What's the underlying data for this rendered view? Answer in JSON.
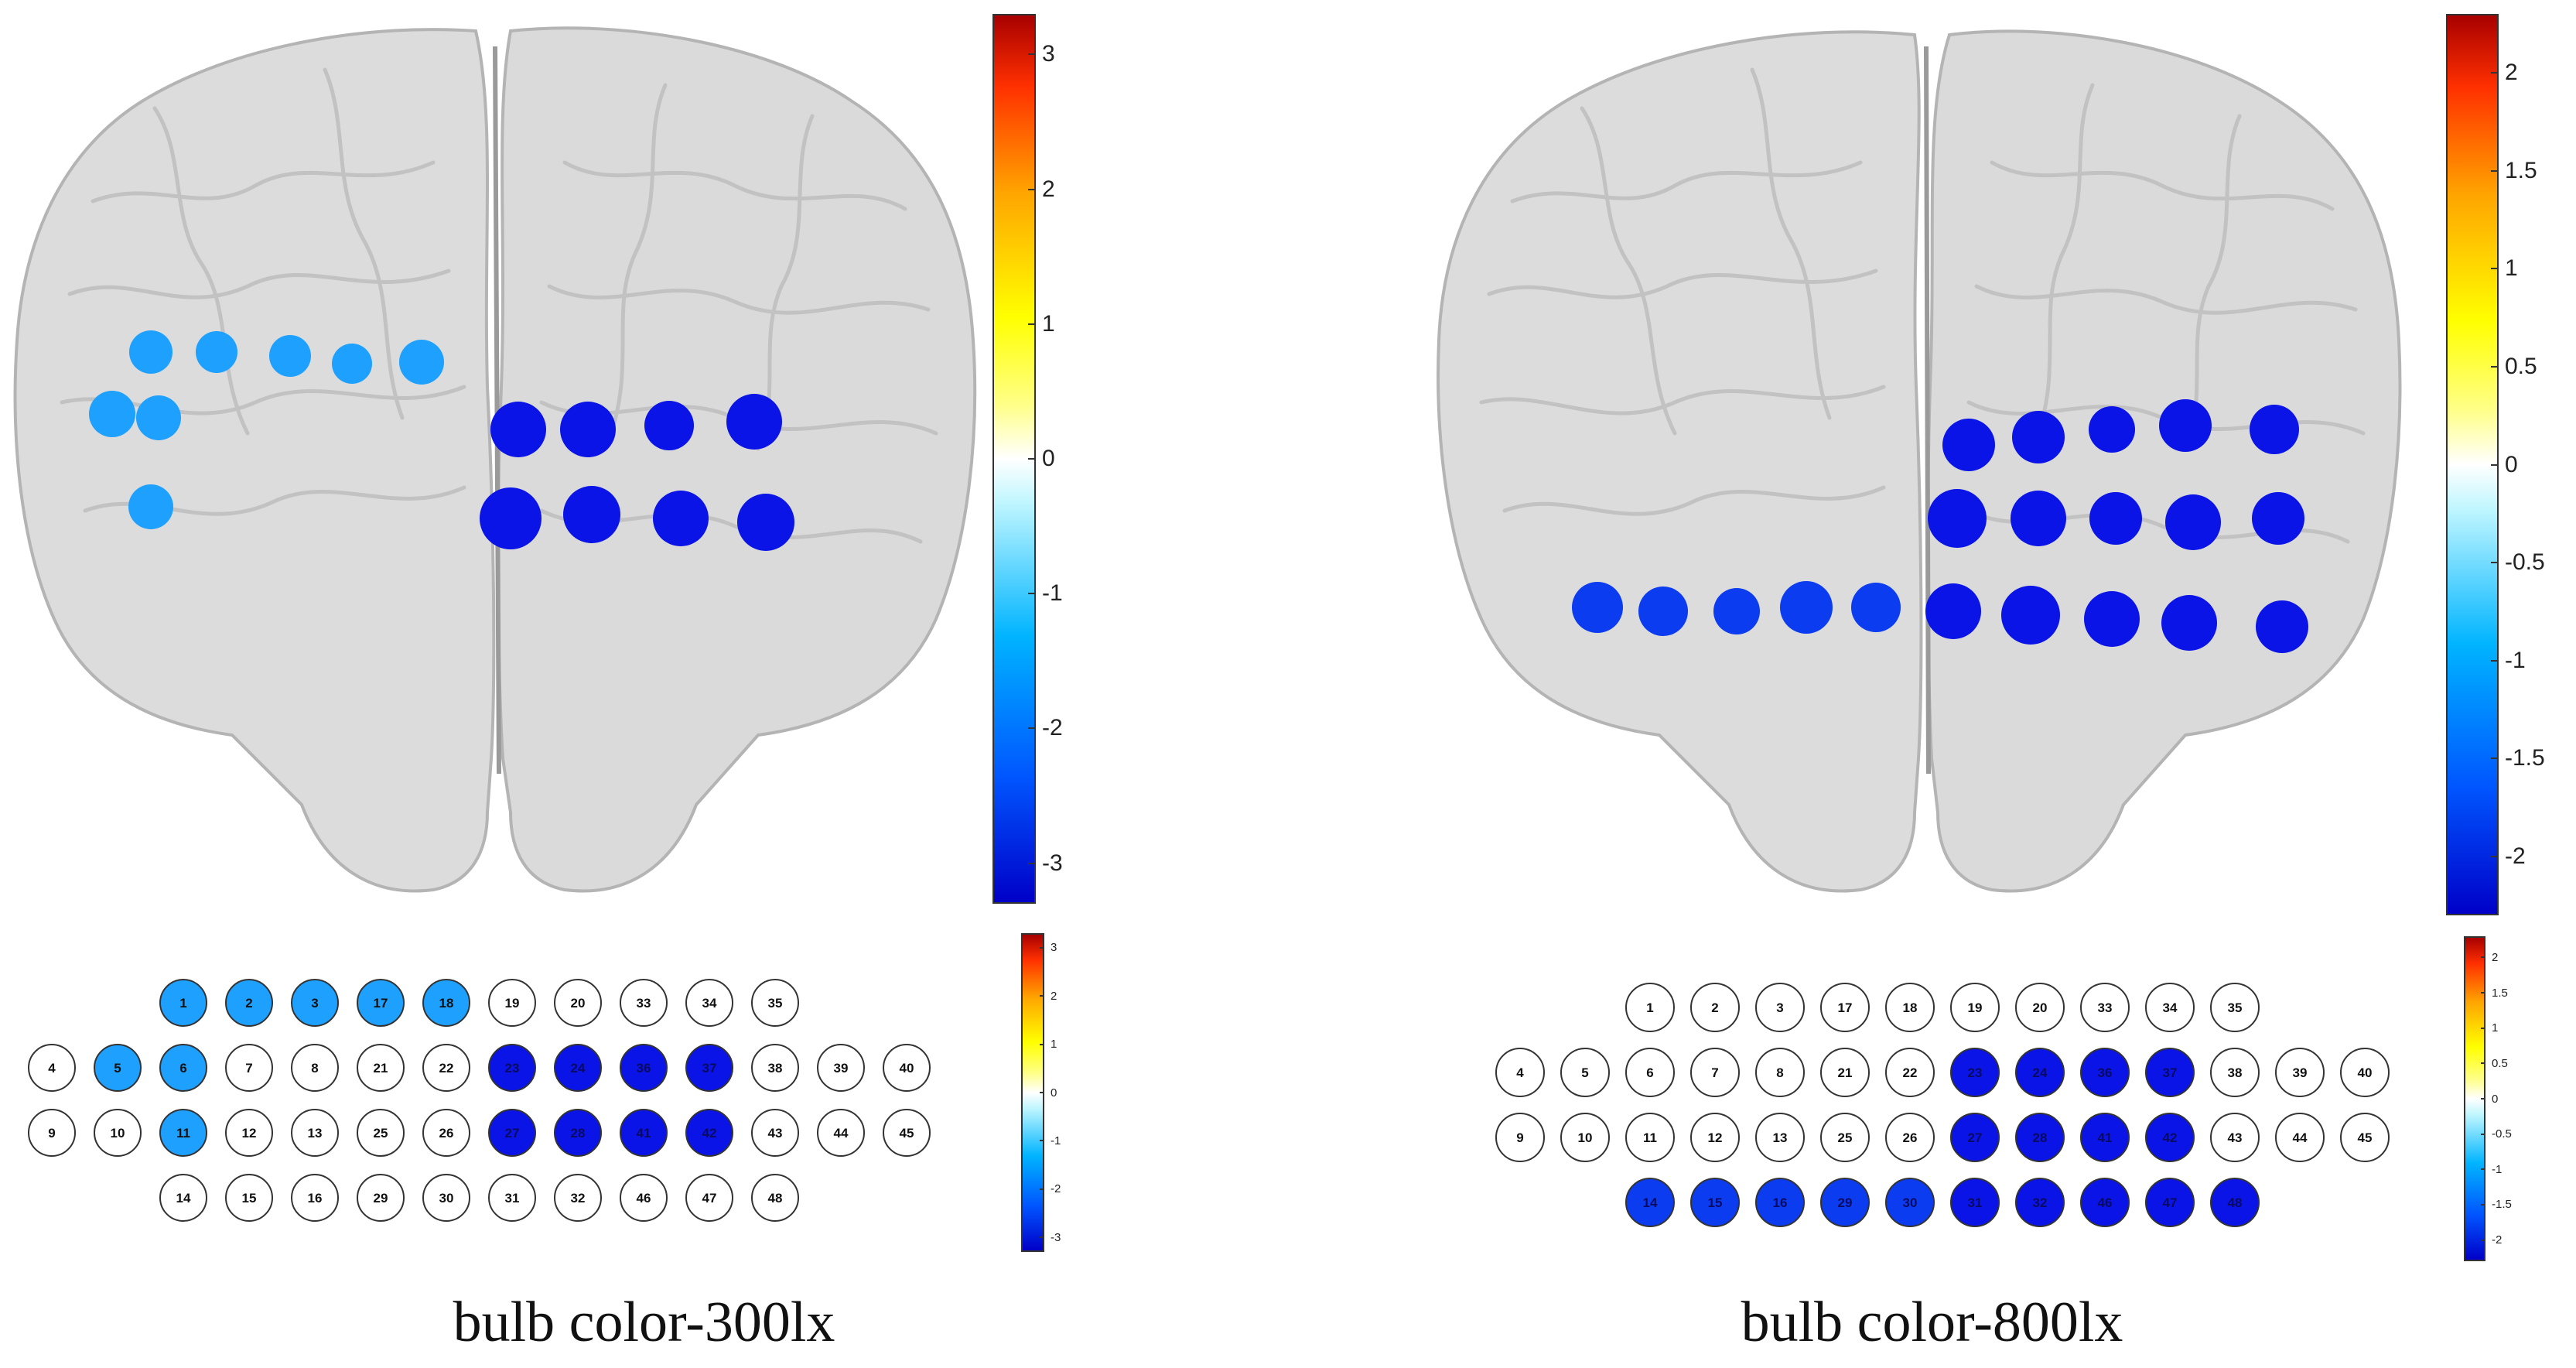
{
  "colors": {
    "brain_fill": "#dcdcdc",
    "brain_stroke": "#b4b4b4",
    "light_blue": "#1ea0ff",
    "dark_blue": "#0a14e6",
    "medium_blue": "#0c3cf0",
    "inactive_fill": "#ffffff"
  },
  "panels": [
    {
      "caption": "bulb color-300lx",
      "colorbar_large": {
        "ticks": [
          "3",
          "2",
          "1",
          "0",
          "-1",
          "-2",
          "-3"
        ],
        "range": [
          -3.3,
          3.3
        ]
      },
      "colorbar_small": {
        "ticks": [
          "3",
          "2",
          "1",
          "0",
          "-1",
          "-2",
          "-3"
        ],
        "range": [
          -3.3,
          3.3
        ]
      },
      "channel_rows": [
        [
          "1",
          "2",
          "3",
          "17",
          "18",
          "19",
          "20",
          "33",
          "34",
          "35"
        ],
        [
          "4",
          "5",
          "6",
          "7",
          "8",
          "21",
          "22",
          "23",
          "24",
          "36",
          "37",
          "38",
          "39",
          "40"
        ],
        [
          "9",
          "10",
          "11",
          "12",
          "13",
          "25",
          "26",
          "27",
          "28",
          "41",
          "42",
          "43",
          "44",
          "45"
        ],
        [
          "14",
          "15",
          "16",
          "29",
          "30",
          "31",
          "32",
          "46",
          "47",
          "48"
        ]
      ],
      "active_light": [
        "1",
        "2",
        "3",
        "17",
        "18",
        "5",
        "6",
        "11"
      ],
      "active_dark": [
        "23",
        "24",
        "36",
        "37",
        "27",
        "28",
        "41",
        "42"
      ],
      "active_medium": []
    },
    {
      "caption": "bulb color-800lx",
      "colorbar_large": {
        "ticks": [
          "2",
          "1.5",
          "1",
          "0.5",
          "0",
          "-0.5",
          "-1",
          "-1.5",
          "-2"
        ],
        "range": [
          -2.3,
          2.3
        ]
      },
      "colorbar_small": {
        "ticks": [
          "2",
          "1.5",
          "1",
          "0.5",
          "0",
          "-0.5",
          "-1",
          "-1.5",
          "-2"
        ],
        "range": [
          -2.3,
          2.3
        ]
      },
      "channel_rows": [
        [
          "1",
          "2",
          "3",
          "17",
          "18",
          "19",
          "20",
          "33",
          "34",
          "35"
        ],
        [
          "4",
          "5",
          "6",
          "7",
          "8",
          "21",
          "22",
          "23",
          "24",
          "36",
          "37",
          "38",
          "39",
          "40"
        ],
        [
          "9",
          "10",
          "11",
          "12",
          "13",
          "25",
          "26",
          "27",
          "28",
          "41",
          "42",
          "43",
          "44",
          "45"
        ],
        [
          "14",
          "15",
          "16",
          "29",
          "30",
          "31",
          "32",
          "46",
          "47",
          "48"
        ]
      ],
      "active_light": [],
      "active_dark": [
        "23",
        "24",
        "36",
        "37",
        "27",
        "28",
        "41",
        "42",
        "31",
        "32",
        "46",
        "47",
        "48"
      ],
      "active_medium": [
        "14",
        "15",
        "16",
        "29",
        "30"
      ]
    }
  ]
}
